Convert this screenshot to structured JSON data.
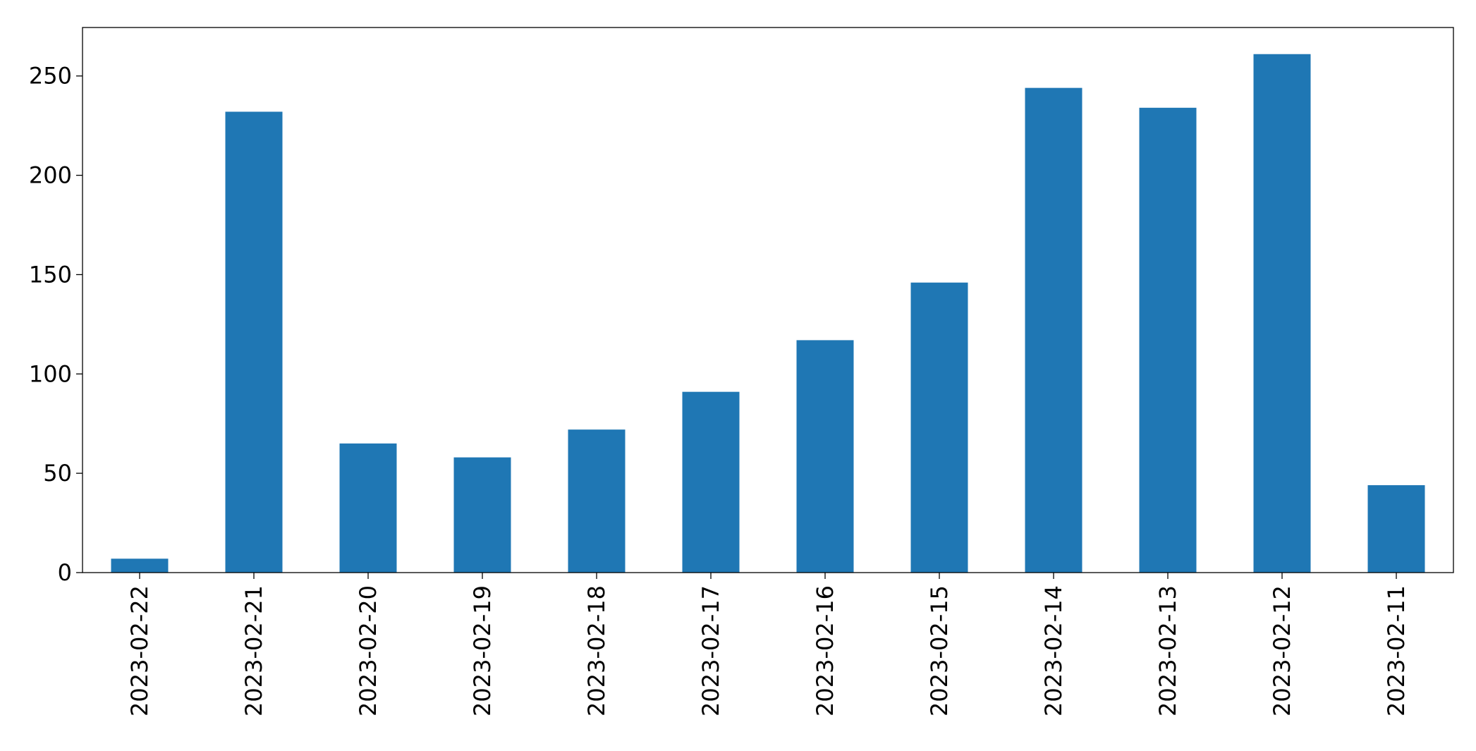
{
  "chart_data": {
    "type": "bar",
    "title": "",
    "xlabel": "",
    "ylabel": "",
    "categories": [
      "2023-02-22",
      "2023-02-21",
      "2023-02-20",
      "2023-02-19",
      "2023-02-18",
      "2023-02-17",
      "2023-02-16",
      "2023-02-15",
      "2023-02-14",
      "2023-02-13",
      "2023-02-12",
      "2023-02-11"
    ],
    "values": [
      7,
      232,
      65,
      58,
      72,
      91,
      117,
      146,
      244,
      234,
      261,
      44
    ],
    "ylim": [
      0,
      274.4
    ],
    "yticks": [
      0,
      50,
      100,
      150,
      200,
      250
    ],
    "ytick_labels": [
      "0",
      "50",
      "100",
      "150",
      "200",
      "250"
    ],
    "bar_color": "#1f77b4",
    "grid": false,
    "legend": false
  }
}
